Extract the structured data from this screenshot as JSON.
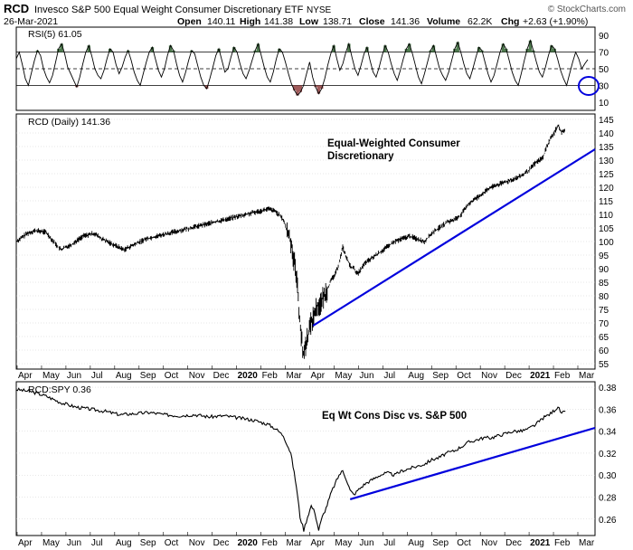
{
  "header": {
    "symbol": "RCD",
    "name": "Invesco S&P 500 Equal Weight Consumer Discretionary ETF",
    "exchange": "NYSE",
    "watermark": "© StockCharts.com",
    "date": "26-Mar-2021",
    "quote": {
      "open_label": "Open",
      "open": "140.11",
      "high_label": "High",
      "high": "141.38",
      "low_label": "Low",
      "low": "138.71",
      "close_label": "Close",
      "close": "141.36",
      "volume_label": "Volume",
      "volume": "62.2K",
      "chg_label": "Chg",
      "chg": "+2.63 (+1.90%)"
    }
  },
  "colors": {
    "price": "#000000",
    "trendline": "#0000dd",
    "rsi_overbought_fill": "#4f7a4f",
    "rsi_oversold_fill": "#a05a5a",
    "grid": "#cfcfcf",
    "circle": "#0000dd"
  },
  "chart_data": [
    {
      "type": "line",
      "panel": "rsi",
      "label": "RSI(5) 61.05",
      "y_ticks": [
        "90",
        "70",
        "50",
        "30",
        "10"
      ],
      "ylim": [
        0,
        100
      ],
      "reference_lines": [
        70,
        50,
        30
      ],
      "series": [
        {
          "values": [
            62,
            70,
            55,
            38,
            30,
            45,
            60,
            72,
            66,
            50,
            40,
            33,
            42,
            58,
            74,
            80,
            68,
            52,
            44,
            36,
            28,
            40,
            56,
            70,
            78,
            65,
            50,
            42,
            38,
            48,
            62,
            74,
            70,
            55,
            44,
            52,
            64,
            72,
            60,
            46,
            36,
            30,
            44,
            58,
            70,
            76,
            62,
            48,
            40,
            50,
            66,
            78,
            72,
            56,
            42,
            34,
            46,
            60,
            72,
            68,
            54,
            40,
            30,
            26,
            38,
            52,
            66,
            74,
            60,
            46,
            50,
            64,
            76,
            70,
            56,
            44,
            38,
            48,
            60,
            72,
            80,
            66,
            52,
            40,
            34,
            46,
            62,
            74,
            70,
            58,
            44,
            32,
            24,
            18,
            22,
            30,
            44,
            58,
            40,
            28,
            20,
            26,
            38,
            54,
            68,
            78,
            62,
            48,
            56,
            70,
            80,
            64,
            50,
            42,
            54,
            68,
            76,
            60,
            46,
            40,
            52,
            66,
            78,
            70,
            56,
            44,
            36,
            48,
            62,
            74,
            80,
            68,
            54,
            40,
            32,
            44,
            58,
            72,
            78,
            64,
            50,
            42,
            36,
            46,
            60,
            74,
            82,
            70,
            56,
            44,
            38,
            50,
            64,
            76,
            72,
            58,
            44,
            34,
            42,
            56,
            70,
            80,
            74,
            60,
            46,
            36,
            30,
            44,
            60,
            74,
            84,
            72,
            58,
            46,
            40,
            52,
            66,
            78,
            74,
            62,
            48,
            38,
            30,
            44,
            58,
            70,
            62,
            50,
            56,
            61
          ]
        }
      ]
    },
    {
      "type": "line",
      "panel": "price",
      "label": "RCD (Daily) 141.36",
      "title": "Equal-Weighted Consumer Discretionary",
      "y_ticks": [
        145,
        140,
        135,
        130,
        125,
        120,
        115,
        110,
        105,
        100,
        95,
        90,
        85,
        80,
        75,
        70,
        65,
        60,
        55
      ],
      "ylim": [
        53,
        147
      ],
      "x_labels": [
        "Apr",
        "May",
        "Jun",
        "Jul",
        "Aug",
        "Sep",
        "Oct",
        "Nov",
        "Dec",
        "2020",
        "Feb",
        "Mar",
        "Apr",
        "May",
        "Jun",
        "Jul",
        "Aug",
        "Sep",
        "Oct",
        "Nov",
        "Dec",
        "2021",
        "Feb",
        "Mar"
      ],
      "series": [
        {
          "points": [
            [
              0,
              100
            ],
            [
              3,
              103
            ],
            [
              5,
              104
            ],
            [
              8,
              103.5
            ],
            [
              10,
              100
            ],
            [
              12,
              97
            ],
            [
              15,
              99
            ],
            [
              18,
              102
            ],
            [
              21,
              103
            ],
            [
              23,
              101
            ],
            [
              26,
              99
            ],
            [
              29,
              97
            ],
            [
              32,
              99
            ],
            [
              35,
              101
            ],
            [
              38,
              102
            ],
            [
              41,
              103
            ],
            [
              44,
              104
            ],
            [
              47,
              105
            ],
            [
              50,
              106
            ],
            [
              53,
              107
            ],
            [
              56,
              108
            ],
            [
              59,
              109
            ],
            [
              62,
              110
            ],
            [
              65,
              111
            ],
            [
              68,
              112
            ],
            [
              70,
              111
            ],
            [
              72,
              108
            ],
            [
              74,
              100
            ],
            [
              75.5,
              88
            ],
            [
              76.5,
              70
            ],
            [
              77.3,
              58
            ],
            [
              78,
              62
            ],
            [
              79,
              68
            ],
            [
              80,
              72
            ],
            [
              81,
              76
            ],
            [
              82,
              77
            ],
            [
              83,
              80
            ],
            [
              84,
              83
            ],
            [
              85,
              86
            ],
            [
              86,
              88
            ],
            [
              87,
              92
            ],
            [
              88,
              98
            ],
            [
              89,
              94
            ],
            [
              90,
              91
            ],
            [
              91,
              90
            ],
            [
              92,
              88
            ],
            [
              93,
              90
            ],
            [
              94,
              92
            ],
            [
              96,
              94
            ],
            [
              98,
              96
            ],
            [
              100,
              98
            ],
            [
              102,
              100
            ],
            [
              104,
              101
            ],
            [
              106,
              102
            ],
            [
              108,
              101
            ],
            [
              110,
              100
            ],
            [
              112,
              103
            ],
            [
              114,
              105
            ],
            [
              116,
              107
            ],
            [
              118,
              108
            ],
            [
              120,
              110
            ],
            [
              122,
              114
            ],
            [
              124,
              116
            ],
            [
              126,
              118
            ],
            [
              128,
              120
            ],
            [
              130,
              121
            ],
            [
              132,
              122
            ],
            [
              134,
              123
            ],
            [
              136,
              124
            ],
            [
              138,
              126
            ],
            [
              140,
              129
            ],
            [
              142,
              131
            ],
            [
              143,
              135
            ],
            [
              144,
              138
            ],
            [
              145,
              140
            ],
            [
              146,
              143
            ],
            [
              147,
              140
            ],
            [
              148,
              141.4
            ]
          ],
          "points_note": "x = trading week index from 1-Apr-2019, y = price"
        }
      ],
      "trendline": [
        [
          80,
          69
        ],
        [
          156,
          134
        ]
      ],
      "trendline_units": "week index, price"
    },
    {
      "type": "line",
      "panel": "ratio",
      "label": "RCD:SPY 0.36",
      "title": "Eq Wt Cons Disc vs. S&P 500",
      "y_ticks": [
        "0.38",
        "0.36",
        "0.34",
        "0.32",
        "0.30",
        "0.28",
        "0.26"
      ],
      "ylim": [
        0.245,
        0.385
      ],
      "x_labels": [
        "Apr",
        "May",
        "Jun",
        "Jul",
        "Aug",
        "Sep",
        "Oct",
        "Nov",
        "Dec",
        "2020",
        "Feb",
        "Mar",
        "Apr",
        "May",
        "Jun",
        "Jul",
        "Aug",
        "Sep",
        "Oct",
        "Nov",
        "Dec",
        "2021",
        "Feb",
        "Mar"
      ],
      "series": [
        {
          "points": [
            [
              0,
              0.378
            ],
            [
              4,
              0.376
            ],
            [
              8,
              0.372
            ],
            [
              12,
              0.366
            ],
            [
              16,
              0.362
            ],
            [
              20,
              0.36
            ],
            [
              24,
              0.358
            ],
            [
              28,
              0.355
            ],
            [
              32,
              0.356
            ],
            [
              36,
              0.357
            ],
            [
              40,
              0.355
            ],
            [
              44,
              0.354
            ],
            [
              48,
              0.355
            ],
            [
              52,
              0.353
            ],
            [
              56,
              0.354
            ],
            [
              60,
              0.352
            ],
            [
              64,
              0.35
            ],
            [
              68,
              0.346
            ],
            [
              70,
              0.342
            ],
            [
              72,
              0.336
            ],
            [
              74,
              0.32
            ],
            [
              75.5,
              0.29
            ],
            [
              76.5,
              0.262
            ],
            [
              77.5,
              0.25
            ],
            [
              78.5,
              0.262
            ],
            [
              79.5,
              0.272
            ],
            [
              80.5,
              0.266
            ],
            [
              81.5,
              0.25
            ],
            [
              82.5,
              0.262
            ],
            [
              83.5,
              0.27
            ],
            [
              85,
              0.285
            ],
            [
              87,
              0.3
            ],
            [
              88,
              0.304
            ],
            [
              89,
              0.296
            ],
            [
              90,
              0.286
            ],
            [
              91,
              0.282
            ],
            [
              92,
              0.286
            ],
            [
              94,
              0.292
            ],
            [
              96,
              0.296
            ],
            [
              98,
              0.3
            ],
            [
              100,
              0.302
            ],
            [
              102,
              0.3
            ],
            [
              104,
              0.304
            ],
            [
              106,
              0.306
            ],
            [
              108,
              0.308
            ],
            [
              110,
              0.31
            ],
            [
              112,
              0.314
            ],
            [
              114,
              0.316
            ],
            [
              116,
              0.32
            ],
            [
              118,
              0.322
            ],
            [
              120,
              0.326
            ],
            [
              122,
              0.33
            ],
            [
              124,
              0.332
            ],
            [
              126,
              0.334
            ],
            [
              128,
              0.334
            ],
            [
              130,
              0.336
            ],
            [
              132,
              0.338
            ],
            [
              134,
              0.34
            ],
            [
              136,
              0.34
            ],
            [
              138,
              0.342
            ],
            [
              140,
              0.346
            ],
            [
              142,
              0.352
            ],
            [
              144,
              0.356
            ],
            [
              146,
              0.362
            ],
            [
              147,
              0.356
            ],
            [
              148,
              0.358
            ]
          ]
        }
      ],
      "trendline": [
        [
          90,
          0.278
        ],
        [
          156,
          0.343
        ]
      ],
      "trendline_units": "week index, ratio"
    }
  ]
}
